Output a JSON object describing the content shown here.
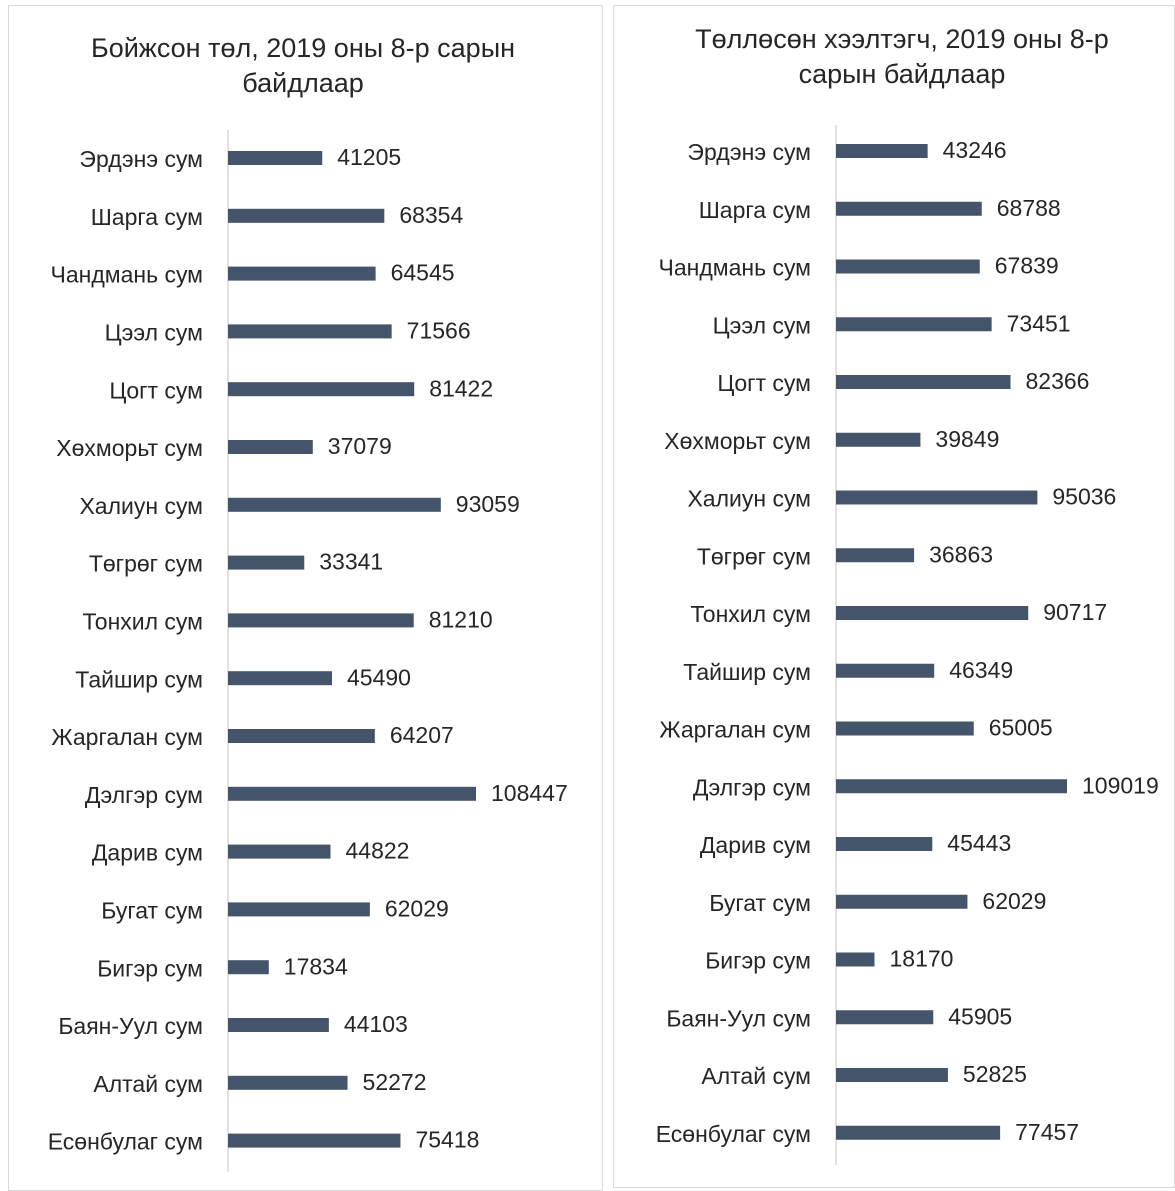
{
  "chart_data": [
    {
      "type": "bar",
      "orientation": "horizontal",
      "title": "Бойжсон төл, 2019 оны 8-р сарын байдлаар",
      "color": "#44546a",
      "categories": [
        "Эрдэнэ сум",
        "Шарга сум",
        "Чандмань сум",
        "Цээл сум",
        "Цогт сум",
        "Хөхморьт сум",
        "Халиун сум",
        "Төгрөг сум",
        "Тонхил сум",
        "Тайшир сум",
        "Жаргалан сум",
        "Дэлгэр сум",
        "Дарив сум",
        "Бугат сум",
        "Бигэр сум",
        "Баян-Уул сум",
        "Алтай сум",
        "Есөнбулаг сум"
      ],
      "values": [
        41205,
        68354,
        64545,
        71566,
        81422,
        37079,
        93059,
        33341,
        81210,
        45490,
        64207,
        108447,
        44822,
        62029,
        17834,
        44103,
        52272,
        75418
      ]
    },
    {
      "type": "bar",
      "orientation": "horizontal",
      "title": "Төллөсөн хээлтэгч, 2019 оны 8-р сарын байдлаар",
      "color": "#44546a",
      "categories": [
        "Эрдэнэ сум",
        "Шарга сум",
        "Чандмань сум",
        "Цээл сум",
        "Цогт сум",
        "Хөхморьт сум",
        "Халиун сум",
        "Төгрөг сум",
        "Тонхил сум",
        "Тайшир сум",
        "Жаргалан сум",
        "Дэлгэр сум",
        "Дарив сум",
        "Бугат сум",
        "Бигэр сум",
        "Баян-Уул сум",
        "Алтай сум",
        "Есөнбулаг сум"
      ],
      "values": [
        43246,
        68788,
        67839,
        73451,
        82366,
        39849,
        95036,
        36863,
        90717,
        46349,
        65005,
        109019,
        45443,
        62029,
        18170,
        45905,
        52825,
        77457
      ]
    }
  ]
}
